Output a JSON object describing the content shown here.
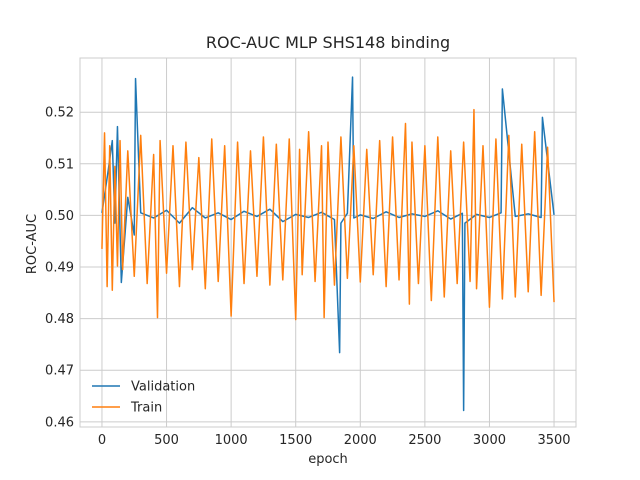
{
  "chart_data": {
    "type": "line",
    "title": "ROC-AUC MLP SHS148 binding",
    "xlabel": "epoch",
    "ylabel": "ROC-AUC",
    "xlim": [
      -170,
      3670
    ],
    "ylim": [
      0.459,
      0.5305
    ],
    "x_ticks": [
      0,
      500,
      1000,
      1500,
      2000,
      2500,
      3000,
      3500
    ],
    "y_ticks": [
      0.46,
      0.47,
      0.48,
      0.49,
      0.5,
      0.51,
      0.52
    ],
    "y_tick_labels": [
      "0.46",
      "0.47",
      "0.48",
      "0.49",
      "0.50",
      "0.51",
      "0.52"
    ],
    "grid": true,
    "legend_position": "lower-left",
    "series": [
      {
        "name": "Validation",
        "color": "#1f77b4",
        "x": [
          0,
          50,
          80,
          100,
          120,
          150,
          200,
          250,
          260,
          300,
          400,
          500,
          600,
          700,
          800,
          900,
          1000,
          1100,
          1200,
          1300,
          1400,
          1500,
          1600,
          1700,
          1800,
          1840,
          1850,
          1900,
          1940,
          1950,
          2000,
          2100,
          2200,
          2300,
          2400,
          2500,
          2600,
          2700,
          2790,
          2800,
          2810,
          2900,
          3000,
          3090,
          3100,
          3200,
          3300,
          3400,
          3410,
          3500
        ],
        "y": [
          0.5005,
          0.509,
          0.5145,
          0.4985,
          0.5172,
          0.487,
          0.5035,
          0.4962,
          0.5265,
          0.5005,
          0.4995,
          0.501,
          0.4985,
          0.5015,
          0.4995,
          0.5005,
          0.4992,
          0.5008,
          0.4998,
          0.5012,
          0.4988,
          0.5002,
          0.4996,
          0.5006,
          0.4992,
          0.4734,
          0.4985,
          0.5004,
          0.5268,
          0.4995,
          0.5001,
          0.4994,
          0.5007,
          0.4996,
          0.5003,
          0.4998,
          0.5009,
          0.4993,
          0.5004,
          0.4622,
          0.4985,
          0.5002,
          0.4996,
          0.5005,
          0.5245,
          0.4998,
          0.5003,
          0.4996,
          0.519,
          0.5001
        ]
      },
      {
        "name": "Train",
        "color": "#ff7f0e",
        "x": [
          0,
          20,
          40,
          60,
          80,
          100,
          120,
          140,
          160,
          200,
          250,
          300,
          350,
          400,
          430,
          450,
          500,
          550,
          600,
          650,
          700,
          750,
          800,
          850,
          900,
          950,
          1000,
          1050,
          1100,
          1150,
          1200,
          1250,
          1300,
          1350,
          1400,
          1450,
          1500,
          1530,
          1550,
          1600,
          1650,
          1700,
          1720,
          1750,
          1800,
          1850,
          1900,
          1950,
          2000,
          2050,
          2100,
          2150,
          2200,
          2250,
          2300,
          2350,
          2380,
          2400,
          2450,
          2500,
          2550,
          2600,
          2650,
          2700,
          2750,
          2800,
          2850,
          2880,
          2900,
          2950,
          3000,
          3050,
          3100,
          3150,
          3200,
          3250,
          3300,
          3350,
          3400,
          3450,
          3500
        ],
        "y": [
          0.4935,
          0.516,
          0.4862,
          0.5135,
          0.4855,
          0.5095,
          0.4902,
          0.5145,
          0.4895,
          0.5125,
          0.4882,
          0.5155,
          0.4868,
          0.5118,
          0.4802,
          0.5145,
          0.4888,
          0.5135,
          0.4862,
          0.5142,
          0.4895,
          0.5112,
          0.4858,
          0.5148,
          0.4872,
          0.5135,
          0.4805,
          0.5142,
          0.4868,
          0.5125,
          0.4882,
          0.5152,
          0.4865,
          0.5138,
          0.4875,
          0.5148,
          0.4798,
          0.5128,
          0.4885,
          0.5162,
          0.4872,
          0.5135,
          0.4802,
          0.5142,
          0.4865,
          0.5152,
          0.4878,
          0.5135,
          0.4871,
          0.5128,
          0.4885,
          0.5145,
          0.4862,
          0.5152,
          0.4875,
          0.5178,
          0.4828,
          0.5142,
          0.4868,
          0.5135,
          0.4835,
          0.5152,
          0.4842,
          0.5125,
          0.4868,
          0.5142,
          0.4872,
          0.5205,
          0.4858,
          0.5135,
          0.4822,
          0.5148,
          0.4838,
          0.5155,
          0.4842,
          0.5138,
          0.4852,
          0.5162,
          0.4845,
          0.5132,
          0.4832
        ]
      }
    ]
  }
}
